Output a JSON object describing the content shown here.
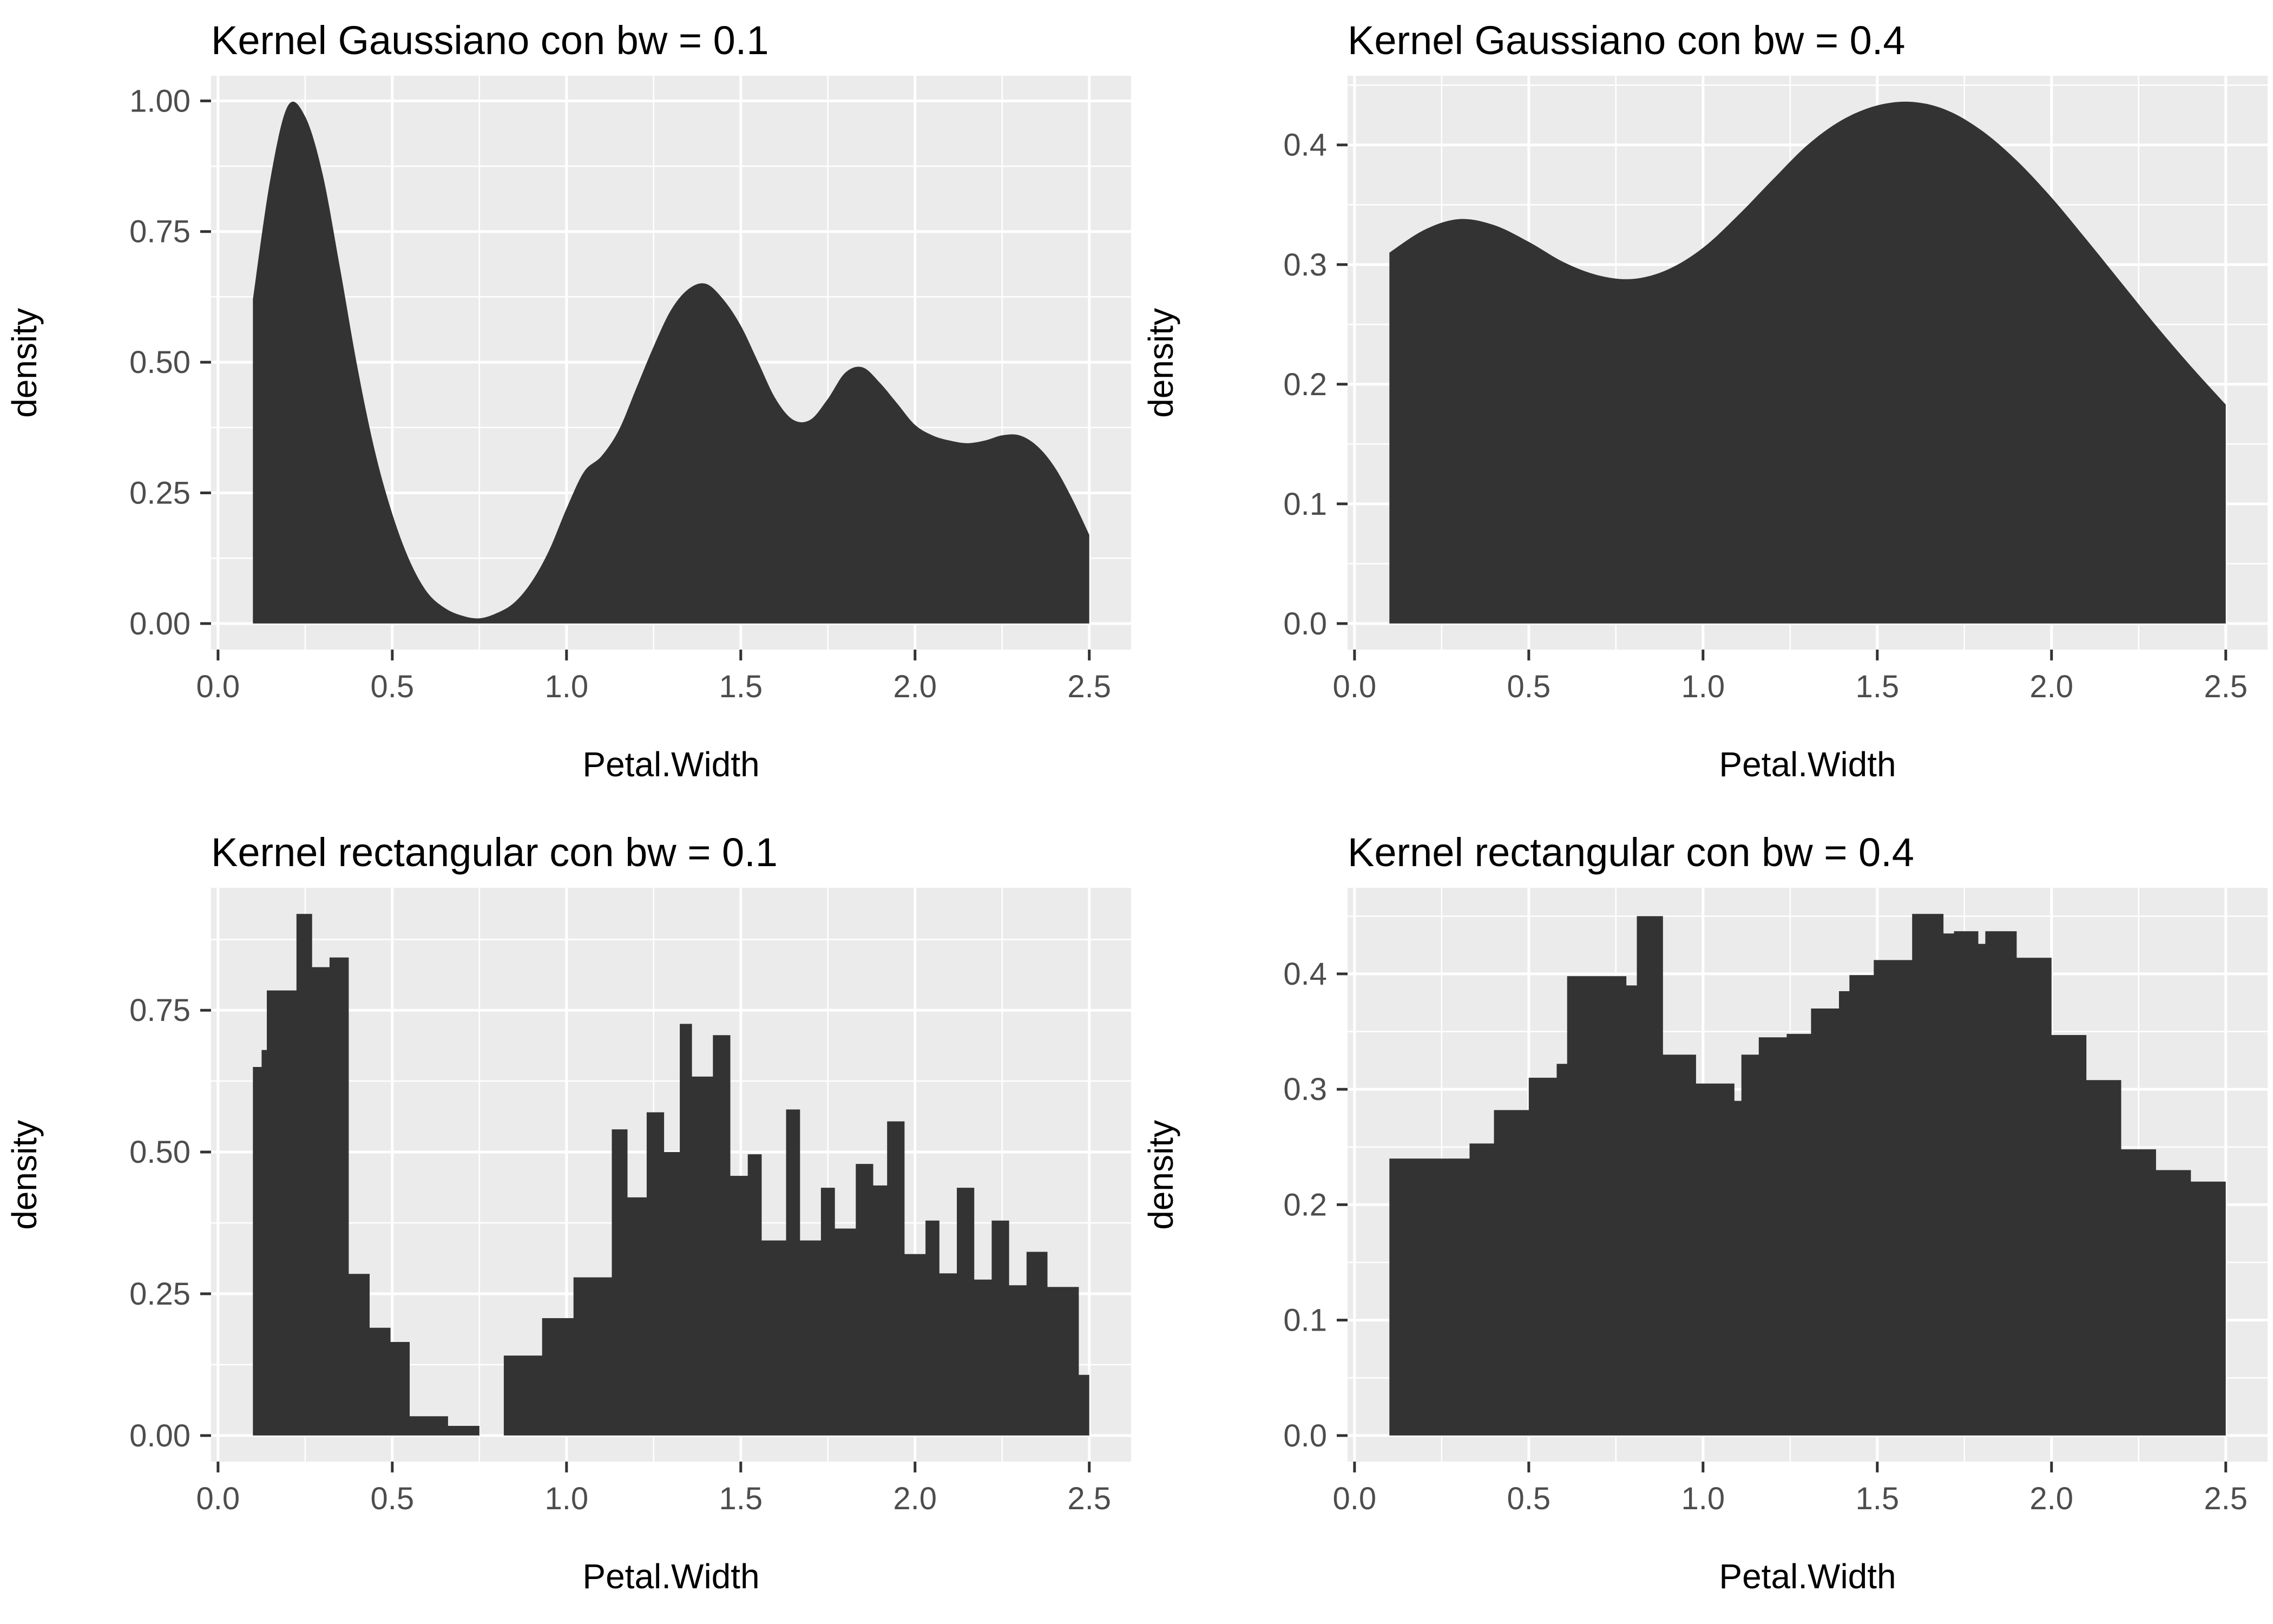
{
  "style": {
    "fill_color": "#333333",
    "panel_bg": "#EBEBEB",
    "grid_color": "#FFFFFF",
    "tick_label_color": "#4D4D4D",
    "tick_mark_color": "#333333",
    "text_color": "#000000",
    "background": "#FFFFFF"
  },
  "chart_data": [
    {
      "type": "area",
      "title": "Kernel Gaussiano con bw = 0.1",
      "xlabel": "Petal.Width",
      "ylabel": "density",
      "kernel": "gaussian",
      "bandwidth": 0.1,
      "curve": "smooth",
      "xlim": [
        -0.02,
        2.62
      ],
      "ylim": [
        -0.0499,
        1.048
      ],
      "x_major": [
        0.0,
        0.5,
        1.0,
        1.5,
        2.0,
        2.5
      ],
      "x_minor": [
        0.25,
        0.75,
        1.25,
        1.75,
        2.25
      ],
      "x_tick_labels": [
        "0.0",
        "0.5",
        "1.0",
        "1.5",
        "2.0",
        "2.5"
      ],
      "y_major": [
        0.0,
        0.25,
        0.5,
        0.75,
        1.0
      ],
      "y_minor": [
        0.125,
        0.375,
        0.625,
        0.875
      ],
      "y_tick_labels": [
        "0.00",
        "0.25",
        "0.50",
        "0.75",
        "1.00"
      ],
      "x": [
        0.1,
        0.15,
        0.2,
        0.25,
        0.3,
        0.35,
        0.4,
        0.45,
        0.5,
        0.55,
        0.6,
        0.65,
        0.7,
        0.75,
        0.8,
        0.85,
        0.9,
        0.95,
        1.0,
        1.05,
        1.1,
        1.15,
        1.2,
        1.25,
        1.3,
        1.35,
        1.4,
        1.45,
        1.5,
        1.55,
        1.6,
        1.65,
        1.7,
        1.75,
        1.8,
        1.85,
        1.9,
        1.95,
        2.0,
        2.05,
        2.1,
        2.15,
        2.2,
        2.25,
        2.3,
        2.35,
        2.4,
        2.45,
        2.5
      ],
      "y": [
        0.62,
        0.85,
        0.99,
        0.97,
        0.86,
        0.68,
        0.49,
        0.33,
        0.21,
        0.12,
        0.06,
        0.03,
        0.015,
        0.01,
        0.02,
        0.04,
        0.08,
        0.14,
        0.22,
        0.29,
        0.32,
        0.37,
        0.45,
        0.53,
        0.6,
        0.64,
        0.65,
        0.62,
        0.57,
        0.5,
        0.43,
        0.39,
        0.39,
        0.43,
        0.48,
        0.49,
        0.46,
        0.42,
        0.38,
        0.36,
        0.35,
        0.345,
        0.35,
        0.36,
        0.36,
        0.34,
        0.3,
        0.24,
        0.17
      ]
    },
    {
      "type": "area",
      "title": "Kernel Gaussiano con bw = 0.4",
      "xlabel": "Petal.Width",
      "ylabel": "density",
      "kernel": "gaussian",
      "bandwidth": 0.4,
      "curve": "smooth",
      "xlim": [
        -0.02,
        2.62
      ],
      "ylim": [
        -0.0218,
        0.4578
      ],
      "x_major": [
        0.0,
        0.5,
        1.0,
        1.5,
        2.0,
        2.5
      ],
      "x_minor": [
        0.25,
        0.75,
        1.25,
        1.75,
        2.25
      ],
      "x_tick_labels": [
        "0.0",
        "0.5",
        "1.0",
        "1.5",
        "2.0",
        "2.5"
      ],
      "y_major": [
        0.0,
        0.1,
        0.2,
        0.3,
        0.4
      ],
      "y_minor": [
        0.05,
        0.15,
        0.25,
        0.35,
        0.45
      ],
      "y_tick_labels": [
        "0.0",
        "0.1",
        "0.2",
        "0.3",
        "0.4"
      ],
      "x": [
        0.1,
        0.2,
        0.3,
        0.4,
        0.5,
        0.6,
        0.7,
        0.8,
        0.9,
        1.0,
        1.1,
        1.2,
        1.3,
        1.4,
        1.5,
        1.6,
        1.7,
        1.8,
        1.9,
        2.0,
        2.1,
        2.2,
        2.3,
        2.4,
        2.5
      ],
      "y": [
        0.31,
        0.329,
        0.338,
        0.333,
        0.319,
        0.302,
        0.291,
        0.288,
        0.296,
        0.314,
        0.341,
        0.371,
        0.4,
        0.421,
        0.433,
        0.436,
        0.429,
        0.412,
        0.387,
        0.356,
        0.321,
        0.285,
        0.249,
        0.215,
        0.183
      ]
    },
    {
      "type": "area",
      "title": "Kernel rectangular con bw = 0.1",
      "xlabel": "Petal.Width",
      "ylabel": "density",
      "kernel": "rectangular",
      "bandwidth": 0.1,
      "curve": "step",
      "xlim": [
        -0.02,
        2.62
      ],
      "ylim": [
        -0.046,
        0.966
      ],
      "x_major": [
        0.0,
        0.5,
        1.0,
        1.5,
        2.0,
        2.5
      ],
      "x_minor": [
        0.25,
        0.75,
        1.25,
        1.75,
        2.25
      ],
      "x_tick_labels": [
        "0.0",
        "0.5",
        "1.0",
        "1.5",
        "2.0",
        "2.5"
      ],
      "y_major": [
        0.0,
        0.25,
        0.5,
        0.75
      ],
      "y_minor": [
        0.125,
        0.375,
        0.625,
        0.875
      ],
      "y_tick_labels": [
        "0.00",
        "0.25",
        "0.50",
        "0.75"
      ],
      "segments": [
        [
          0.1,
          0.125,
          0.65
        ],
        [
          0.125,
          0.14,
          0.68
        ],
        [
          0.14,
          0.225,
          0.785
        ],
        [
          0.225,
          0.27,
          0.92
        ],
        [
          0.27,
          0.32,
          0.826
        ],
        [
          0.32,
          0.375,
          0.843
        ],
        [
          0.375,
          0.435,
          0.285
        ],
        [
          0.435,
          0.495,
          0.19
        ],
        [
          0.495,
          0.55,
          0.165
        ],
        [
          0.55,
          0.66,
          0.034
        ],
        [
          0.66,
          0.75,
          0.017
        ],
        [
          0.75,
          0.82,
          0.0
        ],
        [
          0.82,
          0.93,
          0.141
        ],
        [
          0.93,
          1.02,
          0.207
        ],
        [
          1.02,
          1.13,
          0.279
        ],
        [
          1.13,
          1.175,
          0.54
        ],
        [
          1.175,
          1.23,
          0.42
        ],
        [
          1.23,
          1.28,
          0.57
        ],
        [
          1.28,
          1.325,
          0.5
        ],
        [
          1.325,
          1.36,
          0.726
        ],
        [
          1.36,
          1.42,
          0.633
        ],
        [
          1.42,
          1.47,
          0.706
        ],
        [
          1.47,
          1.52,
          0.458
        ],
        [
          1.52,
          1.56,
          0.496
        ],
        [
          1.56,
          1.63,
          0.344
        ],
        [
          1.63,
          1.67,
          0.575
        ],
        [
          1.67,
          1.73,
          0.344
        ],
        [
          1.73,
          1.77,
          0.437
        ],
        [
          1.77,
          1.83,
          0.365
        ],
        [
          1.83,
          1.88,
          0.479
        ],
        [
          1.88,
          1.92,
          0.441
        ],
        [
          1.92,
          1.97,
          0.554
        ],
        [
          1.97,
          2.03,
          0.32
        ],
        [
          2.03,
          2.07,
          0.379
        ],
        [
          2.07,
          2.12,
          0.286
        ],
        [
          2.12,
          2.17,
          0.437
        ],
        [
          2.17,
          2.22,
          0.275
        ],
        [
          2.22,
          2.27,
          0.379
        ],
        [
          2.27,
          2.32,
          0.265
        ],
        [
          2.32,
          2.38,
          0.324
        ],
        [
          2.38,
          2.47,
          0.262
        ],
        [
          2.47,
          2.5,
          0.107
        ]
      ]
    },
    {
      "type": "area",
      "title": "Kernel rectangular con bw = 0.4",
      "xlabel": "Petal.Width",
      "ylabel": "density",
      "kernel": "rectangular",
      "bandwidth": 0.4,
      "curve": "step",
      "xlim": [
        -0.02,
        2.62
      ],
      "ylim": [
        -0.0226,
        0.4746
      ],
      "x_major": [
        0.0,
        0.5,
        1.0,
        1.5,
        2.0,
        2.5
      ],
      "x_minor": [
        0.25,
        0.75,
        1.25,
        1.75,
        2.25
      ],
      "x_tick_labels": [
        "0.0",
        "0.5",
        "1.0",
        "1.5",
        "2.0",
        "2.5"
      ],
      "y_major": [
        0.0,
        0.1,
        0.2,
        0.3,
        0.4
      ],
      "y_minor": [
        0.05,
        0.15,
        0.25,
        0.35,
        0.45
      ],
      "y_tick_labels": [
        "0.0",
        "0.1",
        "0.2",
        "0.3",
        "0.4"
      ],
      "segments": [
        [
          0.1,
          0.33,
          0.24
        ],
        [
          0.33,
          0.4,
          0.253
        ],
        [
          0.4,
          0.5,
          0.282
        ],
        [
          0.5,
          0.58,
          0.31
        ],
        [
          0.58,
          0.61,
          0.322
        ],
        [
          0.61,
          0.78,
          0.398
        ],
        [
          0.78,
          0.81,
          0.39
        ],
        [
          0.81,
          0.885,
          0.45
        ],
        [
          0.885,
          0.98,
          0.33
        ],
        [
          0.98,
          1.09,
          0.305
        ],
        [
          1.09,
          1.11,
          0.29
        ],
        [
          1.11,
          1.16,
          0.33
        ],
        [
          1.16,
          1.24,
          0.345
        ],
        [
          1.24,
          1.31,
          0.348
        ],
        [
          1.31,
          1.39,
          0.37
        ],
        [
          1.39,
          1.42,
          0.385
        ],
        [
          1.42,
          1.49,
          0.399
        ],
        [
          1.49,
          1.6,
          0.412
        ],
        [
          1.6,
          1.69,
          0.452
        ],
        [
          1.69,
          1.72,
          0.435
        ],
        [
          1.72,
          1.79,
          0.437
        ],
        [
          1.79,
          1.81,
          0.426
        ],
        [
          1.81,
          1.9,
          0.437
        ],
        [
          1.9,
          2.0,
          0.414
        ],
        [
          2.0,
          2.1,
          0.347
        ],
        [
          2.1,
          2.2,
          0.308
        ],
        [
          2.2,
          2.3,
          0.248
        ],
        [
          2.3,
          2.4,
          0.23
        ],
        [
          2.4,
          2.5,
          0.22
        ]
      ]
    }
  ]
}
